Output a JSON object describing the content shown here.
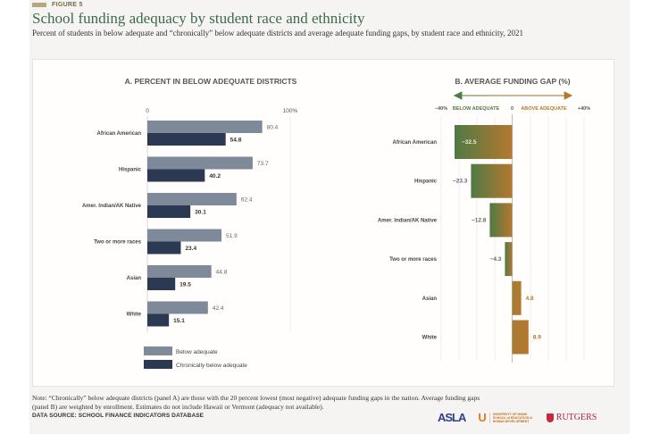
{
  "header": {
    "figure_label": "FIGURE 5",
    "title": "School funding adequacy by student race and ethnicity",
    "subtitle": "Percent of students in below adequate and “chronically” below adequate districts and average adequate funding gaps, by student race and ethnicity, 2021"
  },
  "footer": {
    "note": "Note: “Chronically” below adequate districts (panel A) are those with the 20 percent lowest (most negative) adequate funding gaps in the nation. Average funding gaps (panel B) are weighted by enrollment. Estimates do not include Hawaii or Vermont (adequacy not available).",
    "source": "DATA SOURCE: SCHOOL FINANCE INDICATORS DATABASE",
    "logos": {
      "asla": "ASLA",
      "um_letter": "U",
      "um_text": "UNIVERSITY OF MIAMI SCHOOL of EDUCATION & HUMAN DEVELOPMENT",
      "rutgers": "RUTGERS"
    }
  },
  "colors": {
    "below": "#7e8a9a",
    "chronic": "#2b3a52",
    "gap_green": "#4f7a44",
    "gap_orange": "#b5782f",
    "title_green": "#3b6b4a"
  },
  "chart_data": [
    {
      "type": "bar",
      "orientation": "horizontal",
      "title": "A. PERCENT IN BELOW ADEQUATE DISTRICTS",
      "categories": [
        "African American",
        "Hispanic",
        "Amer. Indian/AK Native",
        "Two or more races",
        "Asian",
        "White"
      ],
      "series": [
        {
          "name": "Below adequate",
          "values": [
            80.4,
            73.7,
            62.4,
            51.9,
            44.8,
            42.4
          ]
        },
        {
          "name": "Chronically below adequate",
          "values": [
            54.8,
            40.2,
            30.1,
            23.4,
            19.5,
            15.1
          ]
        }
      ],
      "xlim": [
        0,
        100
      ],
      "x_tick_labels": [
        "0",
        "100%"
      ],
      "legend": "bottom-left"
    },
    {
      "type": "bar",
      "orientation": "horizontal",
      "title": "B. AVERAGE FUNDING GAP (%)",
      "categories": [
        "African American",
        "Hispanic",
        "Amer. Indian/AK Native",
        "Two or more races",
        "Asian",
        "White"
      ],
      "values": [
        -32.5,
        -23.3,
        -12.8,
        -4.3,
        4.8,
        8.9
      ],
      "value_labels": [
        "−32.5",
        "−23.3",
        "−12.8",
        "−4.3",
        "4.8",
        "8.9"
      ],
      "xlim": [
        -40,
        40
      ],
      "x_tick_labels": [
        "−40%",
        "0",
        "+40%"
      ],
      "direction_labels": {
        "below": "BELOW ADEQUATE",
        "above": "ABOVE ADEQUATE"
      },
      "grid": true
    }
  ]
}
